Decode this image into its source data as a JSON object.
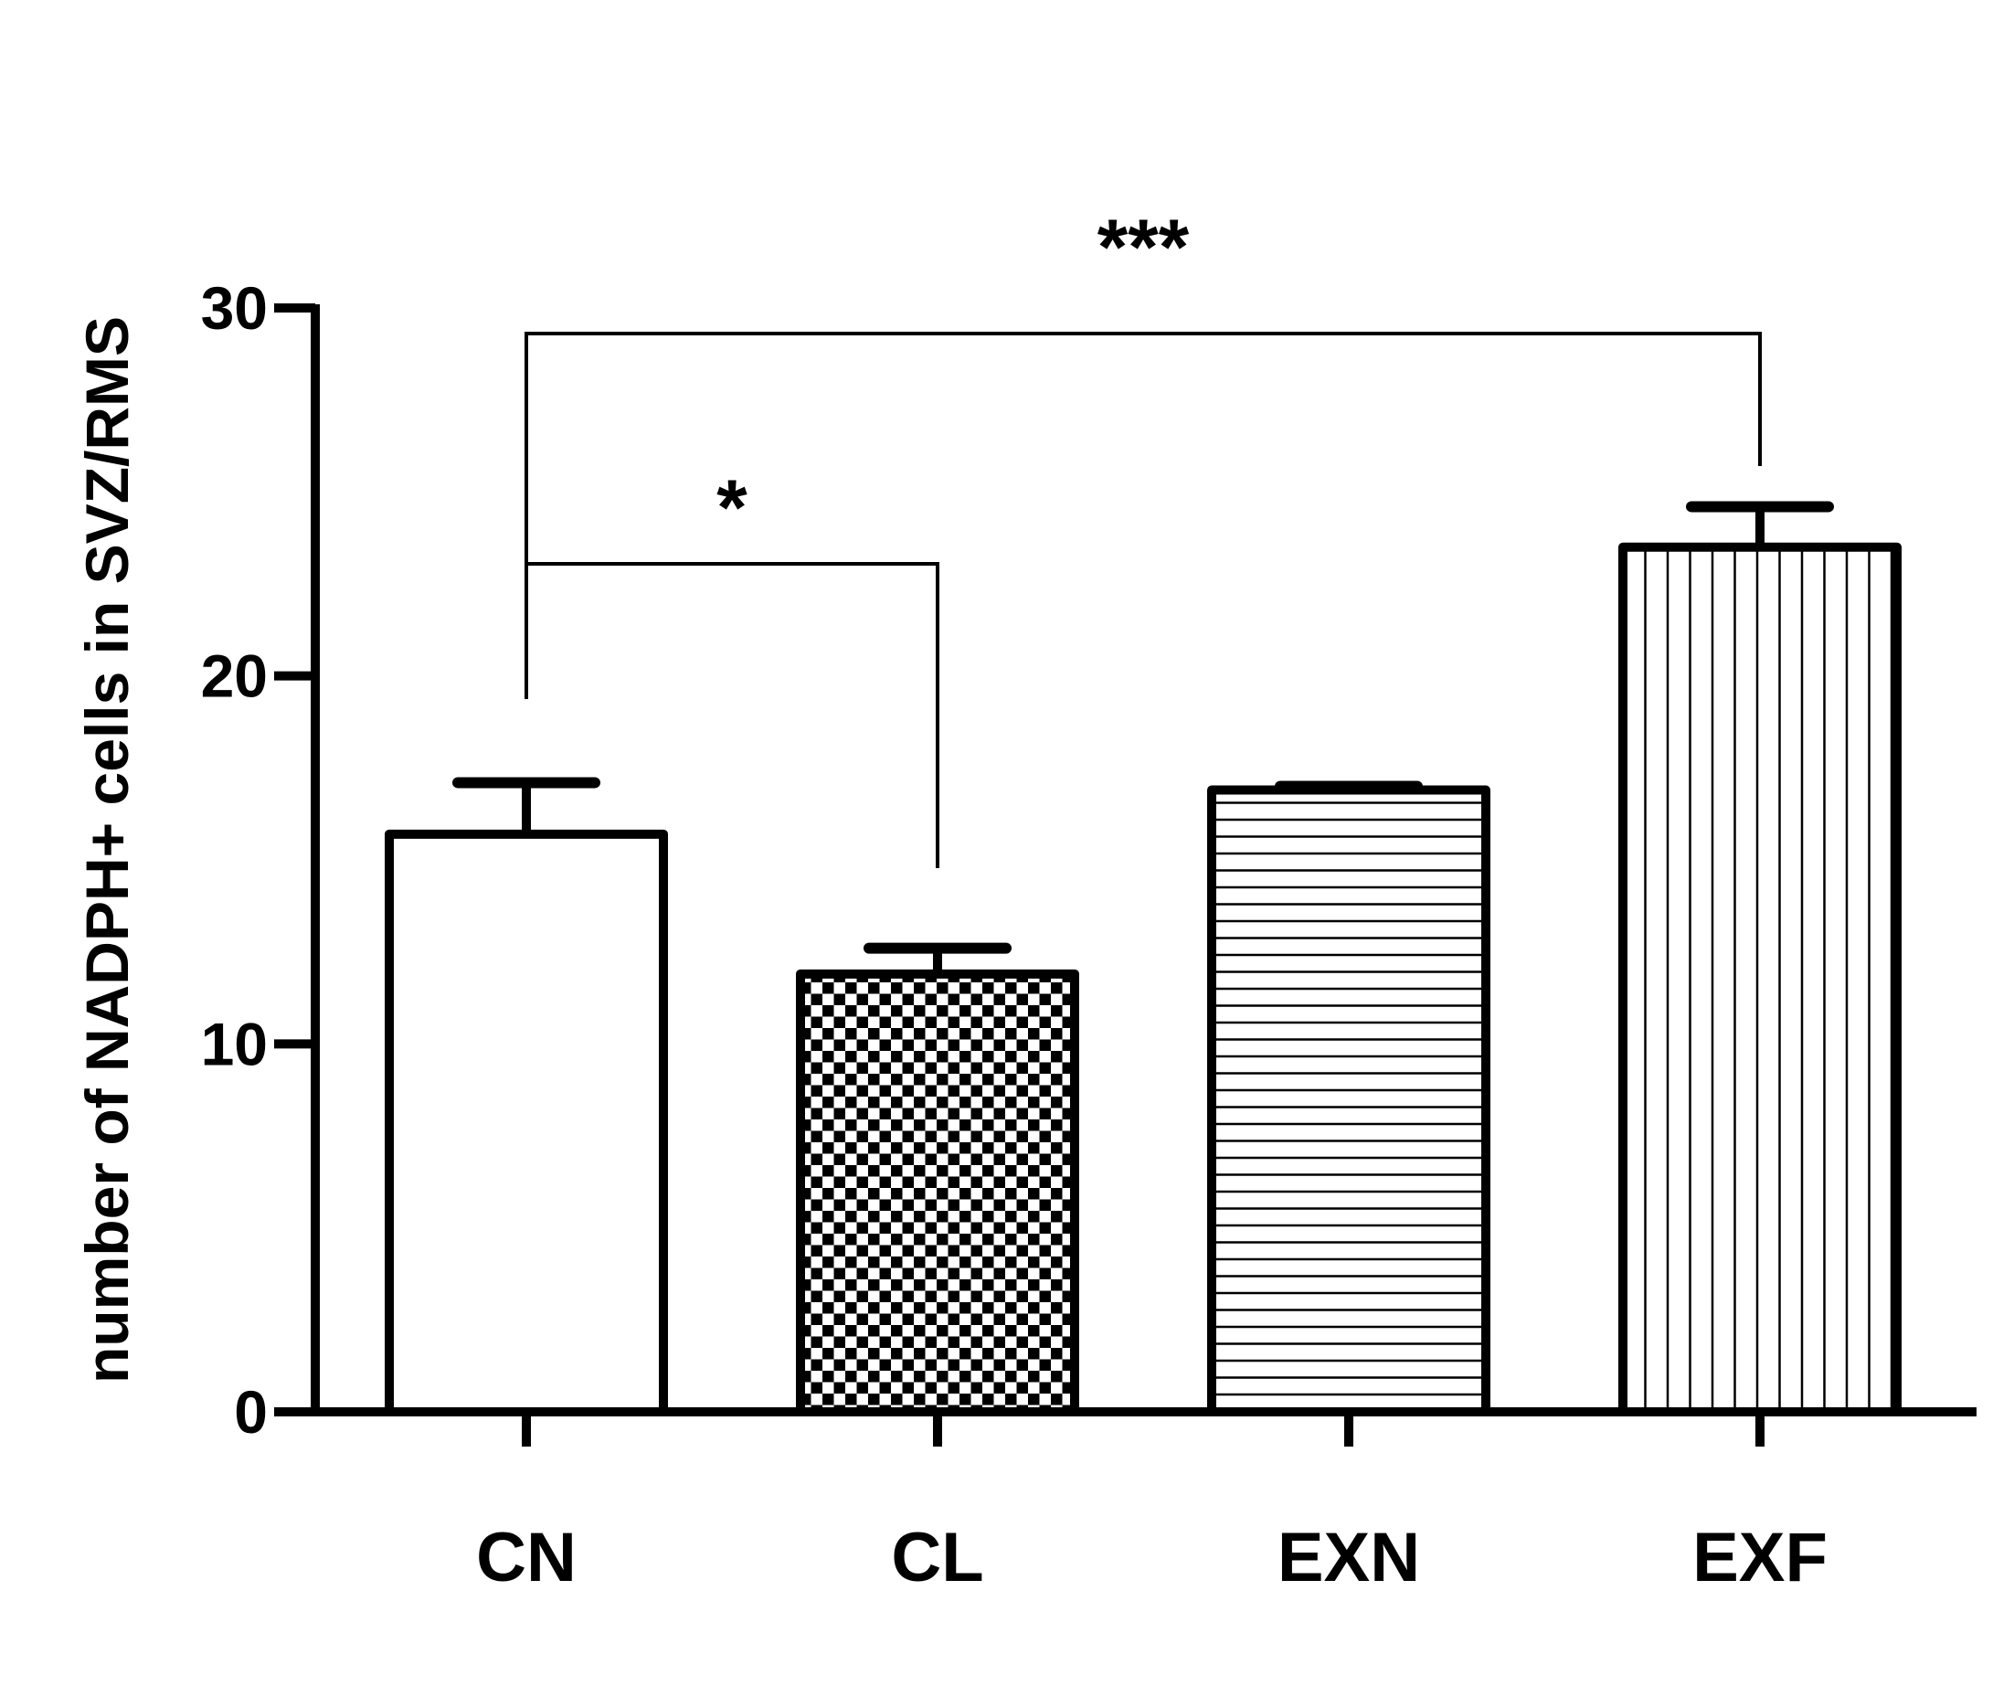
{
  "chart_data": {
    "type": "bar",
    "title": "",
    "xlabel": "",
    "ylabel": "number of NADPH+ cells in SVZ/RMS",
    "ylim": [
      0,
      30
    ],
    "yticks": [
      "0",
      "10",
      "20",
      "30"
    ],
    "grid": false,
    "categories": [
      "CN",
      "CL",
      "EXN",
      "EXF"
    ],
    "values": [
      15.7,
      11.9,
      16.9,
      23.5
    ],
    "errors": [
      1.4,
      0.7,
      0.1,
      1.1
    ],
    "patterns": [
      "none",
      "checker",
      "horizontal-lines",
      "vertical-lines"
    ],
    "significance": [
      {
        "from": "CN",
        "to": "CL",
        "label": "*"
      },
      {
        "from": "CN",
        "to": "EXF",
        "label": "***"
      }
    ],
    "colors": {
      "bar_fill": "#ffffff",
      "stroke": "#000000"
    }
  }
}
